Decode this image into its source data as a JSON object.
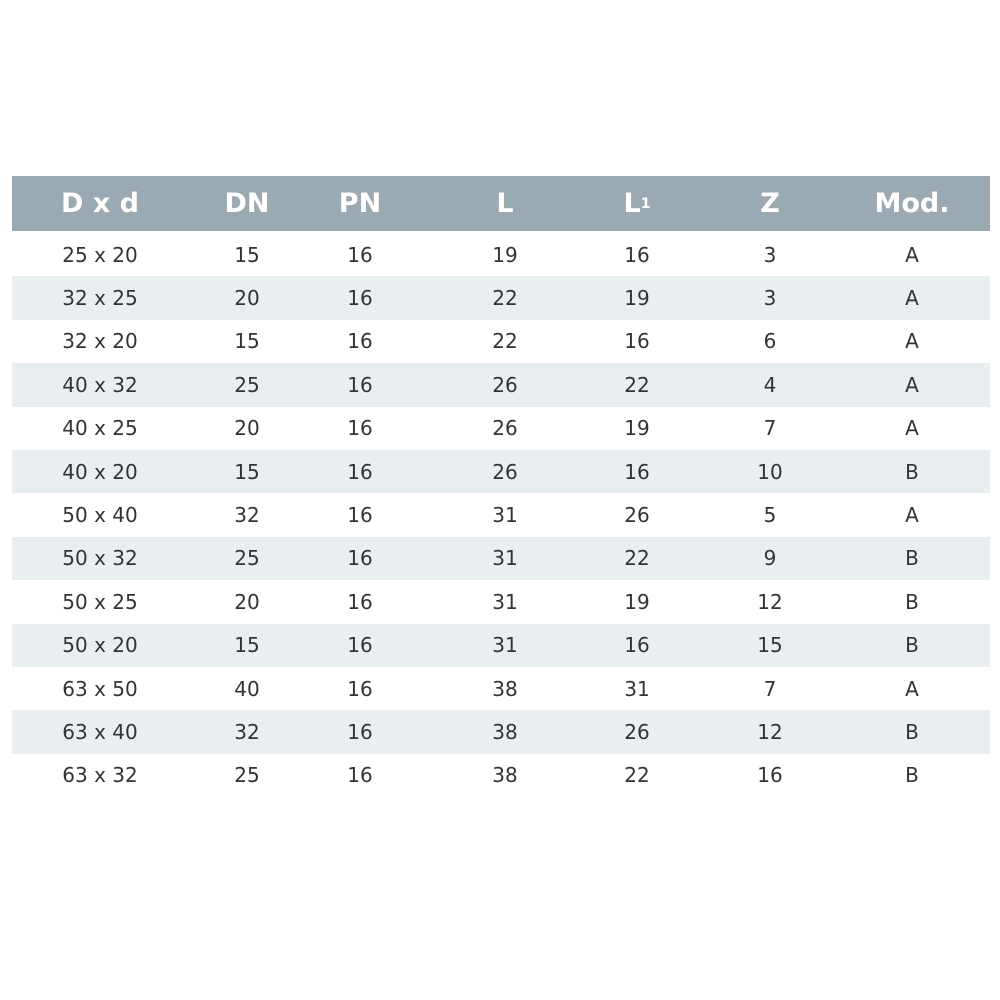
{
  "table": {
    "columns": [
      "D x d",
      "DN",
      "PN",
      "L",
      "L",
      "Z",
      "Mod."
    ],
    "l1_subscript": "1",
    "rows": [
      [
        "25 x 20",
        "15",
        "16",
        "19",
        "16",
        "3",
        "A"
      ],
      [
        "32 x 25",
        "20",
        "16",
        "22",
        "19",
        "3",
        "A"
      ],
      [
        "32 x 20",
        "15",
        "16",
        "22",
        "16",
        "6",
        "A"
      ],
      [
        "40 x 32",
        "25",
        "16",
        "26",
        "22",
        "4",
        "A"
      ],
      [
        "40 x 25",
        "20",
        "16",
        "26",
        "19",
        "7",
        "A"
      ],
      [
        "40 x 20",
        "15",
        "16",
        "26",
        "16",
        "10",
        "B"
      ],
      [
        "50 x 40",
        "32",
        "16",
        "31",
        "26",
        "5",
        "A"
      ],
      [
        "50 x 32",
        "25",
        "16",
        "31",
        "22",
        "9",
        "B"
      ],
      [
        "50 x 25",
        "20",
        "16",
        "31",
        "19",
        "12",
        "B"
      ],
      [
        "50 x 20",
        "15",
        "16",
        "31",
        "16",
        "15",
        "B"
      ],
      [
        "63 x 50",
        "40",
        "16",
        "38",
        "31",
        "7",
        "A"
      ],
      [
        "63 x 40",
        "32",
        "16",
        "38",
        "26",
        "12",
        "B"
      ],
      [
        "63 x 32",
        "25",
        "16",
        "38",
        "22",
        "16",
        "B"
      ]
    ]
  },
  "colors": {
    "header_bg": "#9ba9b2",
    "stripe_bg": "#e9eef1",
    "text": "#333333"
  }
}
